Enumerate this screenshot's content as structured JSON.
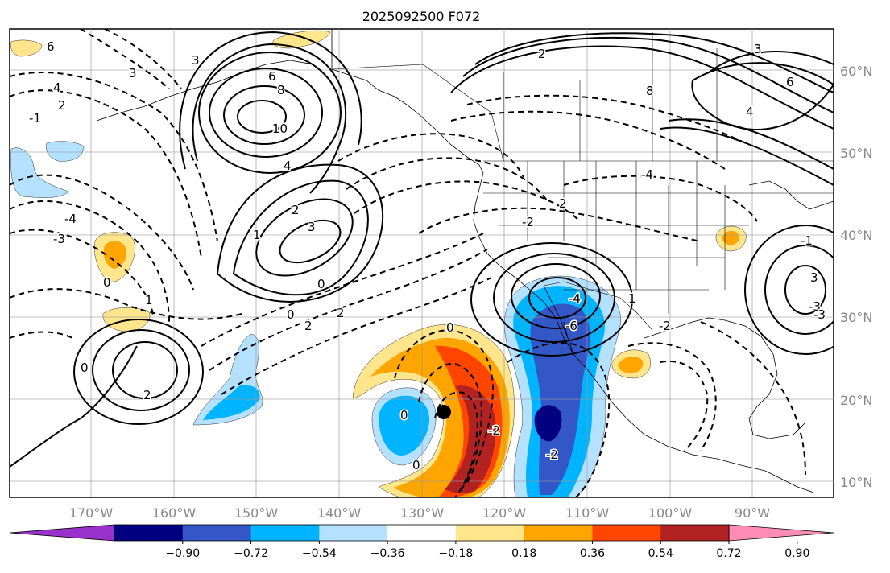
{
  "title": "2025092500 F072",
  "map": {
    "longitude_labels": [
      "170°W",
      "160°W",
      "150°W",
      "140°W",
      "130°W",
      "120°W",
      "110°W",
      "100°W",
      "90°W"
    ],
    "latitude_labels": [
      "60°N",
      "50°N",
      "40°N",
      "30°N",
      "20°N",
      "10°N"
    ],
    "marker": {
      "label": "storm-center-dot"
    }
  },
  "colorbar": {
    "labels": [
      "−0.90",
      "−0.72",
      "−0.54",
      "−0.36",
      "−0.18",
      "0.18",
      "0.36",
      "0.54",
      "0.72",
      "0.90"
    ],
    "colors": [
      "#9932cc",
      "#000080",
      "#3457c8",
      "#00b4ff",
      "#b4e1ff",
      "#ffffff",
      "#ffe68c",
      "#ffa500",
      "#ff4500",
      "#b22222",
      "#ff8cb4"
    ]
  },
  "contour_labels": [
    "6",
    "4",
    "3",
    "2",
    "-1",
    "3",
    "6",
    "8",
    "10",
    "4",
    "2",
    "3",
    "1",
    "0",
    "0",
    "2",
    "2",
    "-4",
    "-3",
    "0",
    "1",
    "0",
    "2",
    "0",
    "-2",
    "-6",
    "-4",
    "-2",
    "0",
    "-2",
    "0",
    "3",
    "-3",
    "-1",
    "3",
    "4",
    "6",
    "8",
    "2",
    "-4",
    "2",
    "-2",
    "1",
    "-3"
  ]
}
